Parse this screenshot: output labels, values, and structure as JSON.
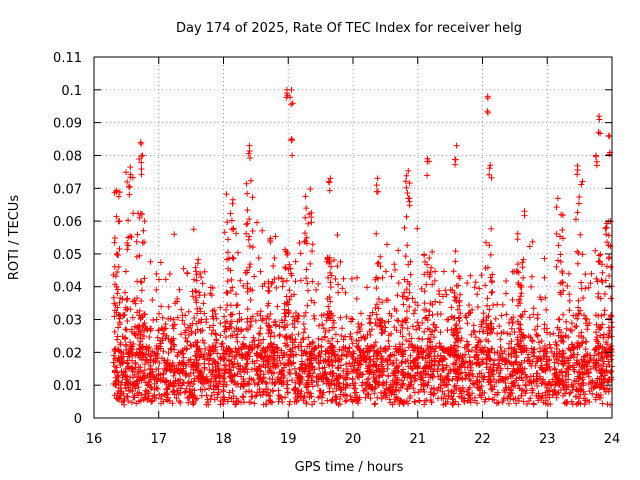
{
  "chart_data": {
    "type": "scatter",
    "title": "Day 174 of 2025, Rate Of TEC Index for receiver helg",
    "xlabel": "GPS time / hours",
    "ylabel": "ROTI / TECUs",
    "xlim": [
      16,
      24
    ],
    "ylim": [
      0,
      0.11
    ],
    "x_ticks": [
      16,
      17,
      18,
      19,
      20,
      21,
      22,
      23,
      24
    ],
    "x_tick_labels": [
      "16",
      "17",
      "18",
      "19",
      "20",
      "21",
      "22",
      "23",
      "24"
    ],
    "y_ticks": [
      0,
      0.01,
      0.02,
      0.03,
      0.04,
      0.05,
      0.06,
      0.07,
      0.08,
      0.09,
      0.1,
      0.11
    ],
    "y_tick_labels": [
      "0",
      "0.01",
      "0.02",
      "0.03",
      "0.04",
      "0.05",
      "0.06",
      "0.07",
      "0.08",
      "0.09",
      "0.1",
      "0.11"
    ],
    "grid": true,
    "marker": "+",
    "color": "#ff0000",
    "series": [
      {
        "name": "ROTI",
        "x_range": [
          16.3,
          24.0
        ],
        "notable_points": [
          {
            "x": 16.35,
            "y": 0.05
          },
          {
            "x": 16.72,
            "y": 0.084
          },
          {
            "x": 16.75,
            "y": 0.08
          },
          {
            "x": 18.4,
            "y": 0.083
          },
          {
            "x": 18.98,
            "y": 0.1
          },
          {
            "x": 19.05,
            "y": 0.1
          },
          {
            "x": 19.05,
            "y": 0.085
          },
          {
            "x": 19.65,
            "y": 0.073
          },
          {
            "x": 20.38,
            "y": 0.073
          },
          {
            "x": 21.15,
            "y": 0.079
          },
          {
            "x": 21.6,
            "y": 0.083
          },
          {
            "x": 22.08,
            "y": 0.098
          },
          {
            "x": 22.12,
            "y": 0.077
          },
          {
            "x": 23.8,
            "y": 0.092
          },
          {
            "x": 23.95,
            "y": 0.086
          },
          {
            "x": 23.75,
            "y": 0.08
          }
        ],
        "typical_range": [
          0.003,
          0.04
        ]
      }
    ]
  }
}
